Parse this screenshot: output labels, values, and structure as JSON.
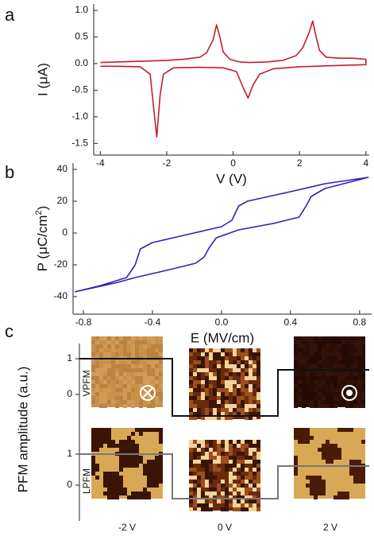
{
  "chart_data": [
    {
      "type": "line",
      "panel": "a",
      "ylabel": "I (μA)",
      "xlabel": "V (V)",
      "xlim": [
        -4.2,
        4.1
      ],
      "ylim": [
        -1.72,
        1.12
      ],
      "xticks": [
        -4,
        -2,
        0,
        2,
        4
      ],
      "yticks": [
        {
          "value": 1,
          "label": "1.0"
        },
        0.5,
        {
          "value": 0,
          "label": "0.0"
        },
        -0.5,
        {
          "value": -1,
          "label": "-1.0"
        },
        -1.5
      ],
      "series": [
        {
          "color": "#c21f2f",
          "x": [
            -4,
            -3,
            -2,
            -1.5,
            -1,
            -0.8,
            -0.6,
            -0.5,
            -0.4,
            -0.3,
            -0.1,
            0.2,
            0.5,
            1,
            1.5,
            1.9,
            2.1,
            2.3,
            2.4,
            2.5,
            2.6,
            2.8,
            3.2,
            3.6,
            4,
            4,
            3,
            2,
            1.2,
            0.8,
            0.6,
            0.45,
            0.3,
            0.1,
            -0.3,
            -1,
            -1.8,
            -2.1,
            -2.2,
            -2.3,
            -2.4,
            -2.5,
            -2.8,
            -3.5,
            -4
          ],
          "values": [
            0.02,
            0.04,
            0.06,
            0.08,
            0.12,
            0.2,
            0.45,
            0.73,
            0.5,
            0.22,
            0.08,
            0.03,
            0.02,
            0.03,
            0.06,
            0.15,
            0.3,
            0.6,
            0.8,
            0.5,
            0.25,
            0.12,
            0.1,
            0.1,
            0.08,
            -0.02,
            -0.04,
            -0.06,
            -0.1,
            -0.2,
            -0.4,
            -0.65,
            -0.45,
            -0.15,
            -0.08,
            -0.07,
            -0.08,
            -0.2,
            -0.6,
            -1.38,
            -0.8,
            -0.2,
            -0.06,
            -0.05,
            -0.05
          ]
        }
      ]
    },
    {
      "type": "line",
      "panel": "b",
      "ylabel": [
        "P (μC/cm",
        "2",
        ")"
      ],
      "xlabel": "E (MV/cm)",
      "xlim": [
        -0.86,
        0.87
      ],
      "ylim": [
        -51,
        44
      ],
      "xticks": [
        -0.8,
        -0.4,
        {
          "value": 0,
          "label": "0.0"
        },
        0.4,
        0.8
      ],
      "yticks": [
        40,
        20,
        0,
        -20,
        -40
      ],
      "series": [
        {
          "color": "#2f22b8",
          "x": [
            -0.85,
            -0.6,
            -0.5,
            -0.3,
            -0.15,
            -0.1,
            -0.07,
            -0.03,
            0.1,
            0.3,
            0.45,
            0.49,
            0.52,
            0.6,
            0.85,
            0.6,
            0.4,
            0.15,
            0.1,
            0.06,
            0,
            -0.2,
            -0.4,
            -0.47,
            -0.5,
            -0.55,
            -0.7,
            -0.85
          ],
          "values": [
            -37,
            -31,
            -28,
            -23,
            -19,
            -15,
            -9,
            -3,
            2,
            6,
            10,
            17,
            23,
            28,
            35,
            31,
            26,
            20,
            17,
            8,
            4,
            -1,
            -6,
            -10,
            -20,
            -28,
            -33,
            -37
          ]
        }
      ]
    }
  ],
  "panel_c": {
    "panel": "c",
    "ylabel": "PFM amplitude (a.u.)",
    "channels": [
      "VPFM",
      "LPFM"
    ],
    "vpfm_ticks": [
      "1",
      "0"
    ],
    "lpfm_ticks": [
      "1",
      "0"
    ],
    "voltages": [
      "-2 V",
      "0 V",
      "2 V"
    ]
  }
}
